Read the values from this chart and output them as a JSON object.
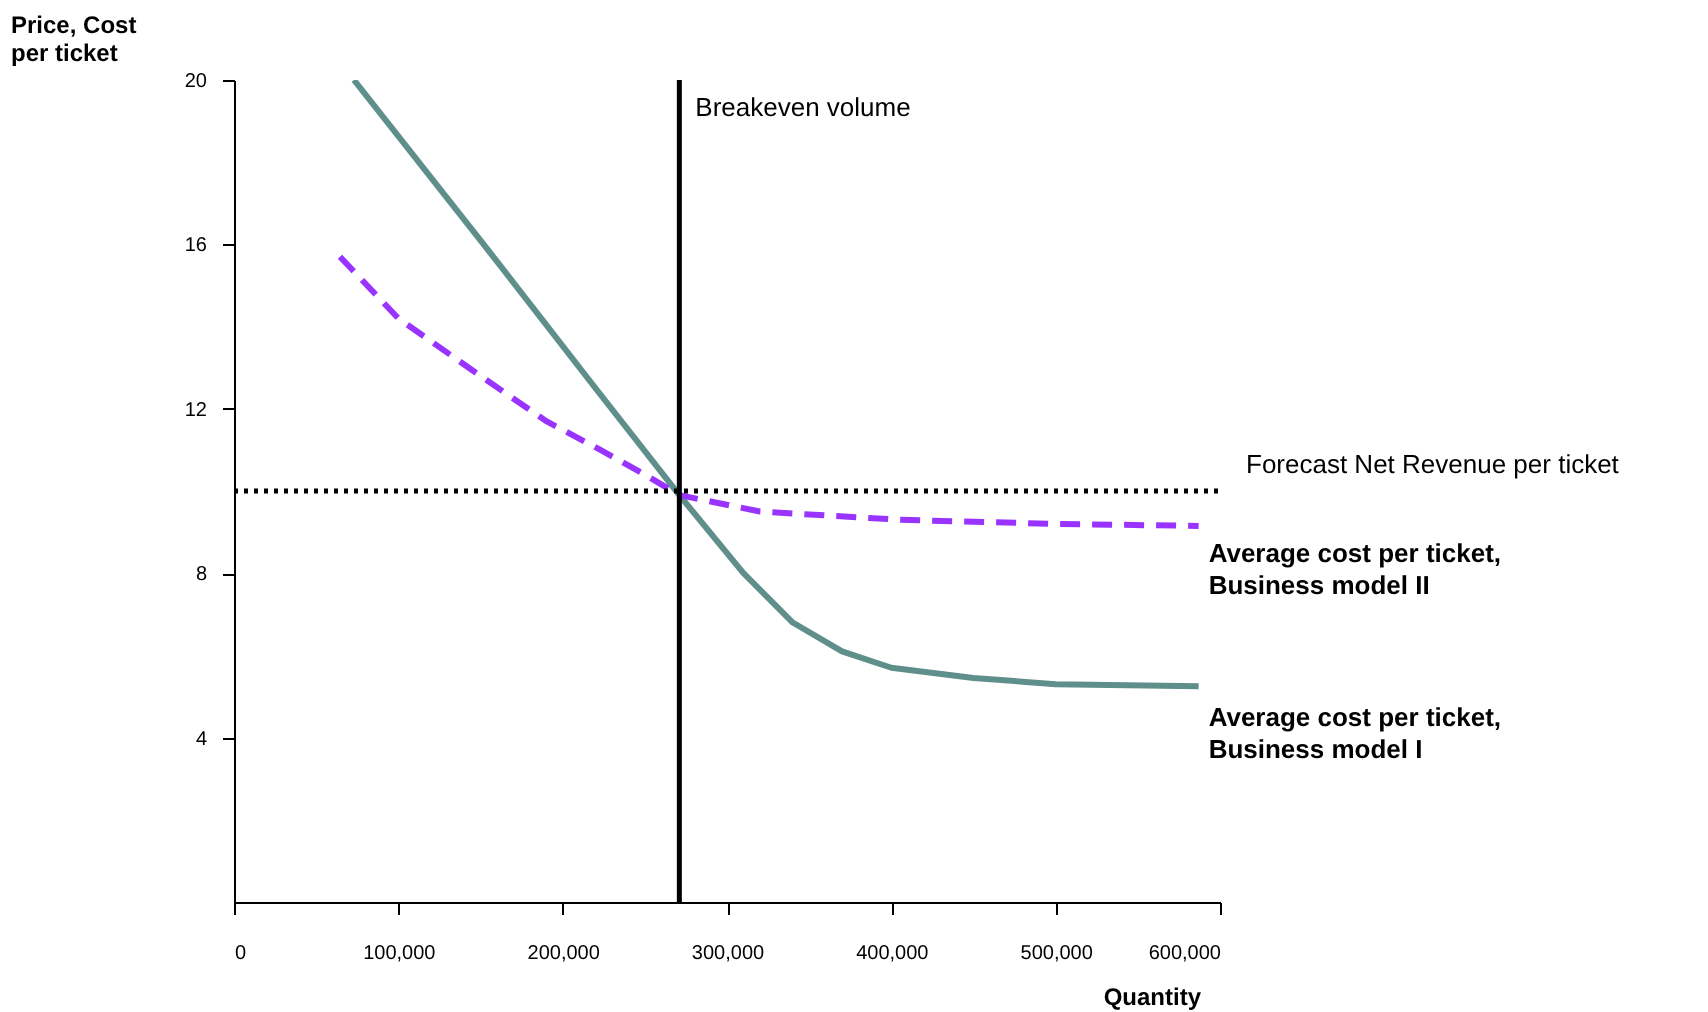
{
  "chart_data": {
    "type": "line",
    "xlabel": "Quantity",
    "ylabel": "Price, Cost\nper ticket",
    "xlim": [
      0,
      600000
    ],
    "xticks": [
      0,
      {
        "value": 100000,
        "label": "100,000"
      },
      {
        "value": 200000,
        "label": "200,000"
      },
      {
        "value": 300000,
        "label": "300,000"
      },
      {
        "value": 400000,
        "label": "400,000"
      },
      {
        "value": 500000,
        "label": "500,000"
      },
      {
        "value": 600000,
        "label": "600,000"
      }
    ],
    "ylim": [
      0,
      20
    ],
    "yticks": [
      4,
      8,
      12,
      16,
      20
    ],
    "grid": false,
    "legend": false,
    "marker": "none",
    "series": [
      {
        "name": "Average cost per ticket,\nBusiness model I",
        "color": "#5f8f8b",
        "line_style": "solid",
        "x": [
          73000,
          150000,
          220000,
          271000,
          310000,
          340000,
          370000,
          400000,
          450000,
          500000,
          587000
        ],
        "values": [
          20,
          16.1,
          12.5,
          9.9,
          8.0,
          6.8,
          6.1,
          5.7,
          5.45,
          5.3,
          5.25
        ]
      },
      {
        "name": "Average cost per ticket,\nBusiness model II",
        "color": "#9933ff",
        "line_style": "dashed",
        "x": [
          64500,
          100000,
          150000,
          190000,
          223000,
          250000,
          271000,
          320000,
          405000,
          500000,
          587000
        ],
        "values": [
          15.7,
          14.2,
          12.8,
          11.7,
          11.0,
          10.4,
          9.9,
          9.5,
          9.3,
          9.2,
          9.15
        ]
      }
    ],
    "ref_lines": [
      {
        "axis": "x",
        "value": 271000,
        "label": "Breakeven volume",
        "color": "#000000",
        "line_style": "solid"
      },
      {
        "axis": "y",
        "value": 10,
        "label": "Forecast Net Revenue per ticket",
        "color": "#000000",
        "line_style": "dotted"
      }
    ]
  }
}
